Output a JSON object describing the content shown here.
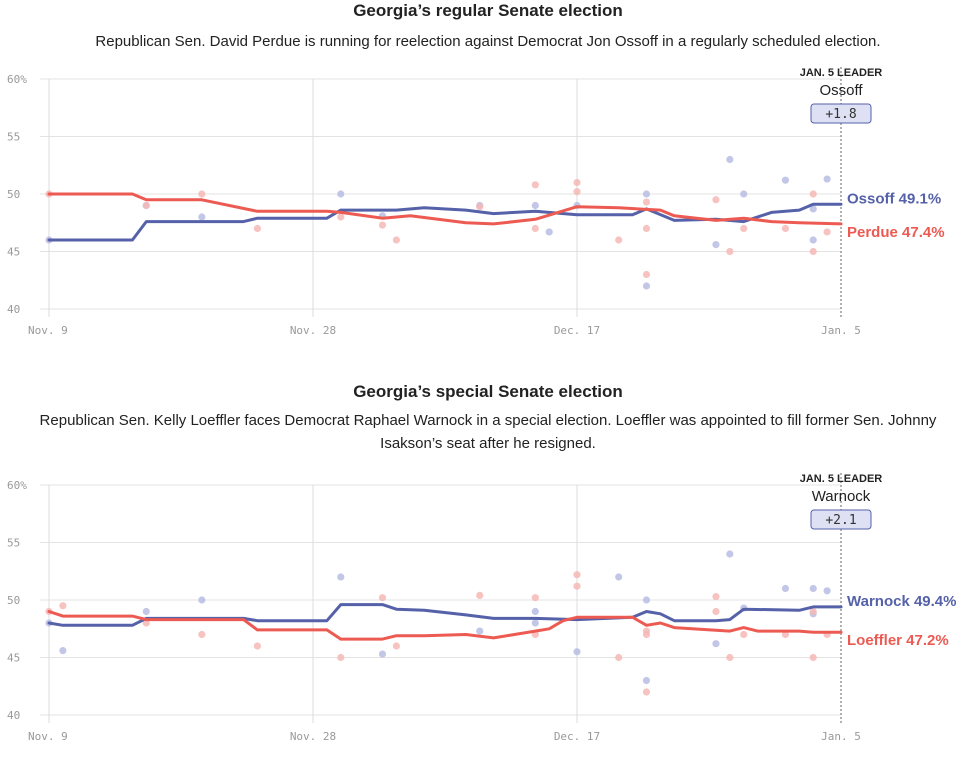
{
  "chart_data": [
    {
      "type": "line",
      "title": "Georgia’s regular Senate election",
      "subtitle": "Republican Sen. David Perdue is running for reelection against Democrat Jon Ossoff in a regularly scheduled election.",
      "x_tick_labels": [
        "Nov. 9",
        "Nov. 28",
        "Dec. 17",
        "Jan. 5"
      ],
      "x_tick_days": [
        0,
        19,
        38,
        57
      ],
      "y_ticks": [
        40,
        45,
        50,
        55,
        60
      ],
      "y_tick_labels": [
        "40",
        "45",
        "50",
        "55",
        "60%"
      ],
      "ylim": [
        40,
        60
      ],
      "xlim_days": [
        0,
        57
      ],
      "grid": true,
      "leader": {
        "caption": "JAN. 5 LEADER",
        "name": "Ossoff",
        "margin": "+1.8"
      },
      "series": [
        {
          "name": "Ossoff",
          "color": "#5561a8",
          "dot_color": "#b8bde3",
          "end_label": "Ossoff 49.1%",
          "x": [
            0,
            6,
            7,
            14,
            15,
            20,
            21,
            25,
            27,
            30,
            32,
            35,
            38,
            42,
            43,
            45,
            48,
            50,
            52,
            54,
            55,
            57
          ],
          "y": [
            46.0,
            46.0,
            47.6,
            47.6,
            47.9,
            47.9,
            48.6,
            48.6,
            48.8,
            48.6,
            48.3,
            48.5,
            48.2,
            48.2,
            48.7,
            47.7,
            47.8,
            47.6,
            48.4,
            48.6,
            49.1,
            49.1
          ],
          "polls": {
            "x": [
              0,
              7,
              11,
              21,
              24,
              31,
              35,
              36,
              38,
              43,
              43,
              48,
              49,
              50,
              53,
              55,
              55,
              56
            ],
            "y": [
              46.0,
              49.0,
              48.0,
              50.0,
              48.1,
              49.0,
              49.0,
              46.7,
              49.0,
              50.0,
              42.0,
              45.6,
              53.0,
              50.0,
              51.2,
              48.7,
              46.0,
              51.3
            ]
          }
        },
        {
          "name": "Perdue",
          "color": "#ec5a52",
          "dot_color": "#f5b9b6",
          "end_label": "Perdue 47.4%",
          "x": [
            0,
            6,
            7,
            11,
            15,
            20,
            21,
            24,
            26,
            30,
            32,
            35,
            38,
            41,
            44,
            45,
            48,
            50,
            52,
            54,
            57
          ],
          "y": [
            50.0,
            50.0,
            49.5,
            49.5,
            48.5,
            48.5,
            48.4,
            47.9,
            48.1,
            47.5,
            47.4,
            47.8,
            48.9,
            48.8,
            48.6,
            48.1,
            47.7,
            47.9,
            47.6,
            47.5,
            47.4
          ],
          "polls": {
            "x": [
              0,
              7,
              11,
              15,
              21,
              24,
              25,
              31,
              35,
              35,
              38,
              38,
              41,
              43,
              43,
              43,
              48,
              49,
              50,
              53,
              55,
              55,
              56
            ],
            "y": [
              50.0,
              49.0,
              50.0,
              47.0,
              48.0,
              47.3,
              46.0,
              48.9,
              50.8,
              47.0,
              51.0,
              50.2,
              46.0,
              49.3,
              47.0,
              43.0,
              49.5,
              45.0,
              47.0,
              47.0,
              50.0,
              45.0,
              46.7
            ]
          }
        }
      ]
    },
    {
      "type": "line",
      "title": "Georgia’s special Senate election",
      "subtitle": "Republican Sen. Kelly Loeffler faces Democrat Raphael Warnock in a special election. Loeffler was appointed to fill former Sen. Johnny Isakson’s seat after he resigned.",
      "x_tick_labels": [
        "Nov. 9",
        "Nov. 28",
        "Dec. 17",
        "Jan. 5"
      ],
      "x_tick_days": [
        0,
        19,
        38,
        57
      ],
      "y_ticks": [
        40,
        45,
        50,
        55,
        60
      ],
      "y_tick_labels": [
        "40",
        "45",
        "50",
        "55",
        "60%"
      ],
      "ylim": [
        40,
        60
      ],
      "xlim_days": [
        0,
        57
      ],
      "grid": true,
      "leader": {
        "caption": "JAN. 5 LEADER",
        "name": "Warnock",
        "margin": "+2.1"
      },
      "series": [
        {
          "name": "Warnock",
          "color": "#5561a8",
          "dot_color": "#b8bde3",
          "end_label": "Warnock 49.4%",
          "x": [
            0,
            1,
            6,
            7,
            14,
            15,
            20,
            21,
            24,
            25,
            27,
            30,
            32,
            35,
            38,
            42,
            43,
            44,
            45,
            48,
            49,
            50,
            54,
            55,
            57
          ],
          "y": [
            48.0,
            47.8,
            47.8,
            48.4,
            48.4,
            48.2,
            48.2,
            49.6,
            49.6,
            49.2,
            49.1,
            48.7,
            48.4,
            48.4,
            48.3,
            48.5,
            49.0,
            48.8,
            48.2,
            48.2,
            48.3,
            49.2,
            49.1,
            49.4,
            49.4
          ],
          "polls": {
            "x": [
              0,
              1,
              7,
              11,
              21,
              24,
              31,
              35,
              35,
              38,
              41,
              43,
              43,
              48,
              49,
              50,
              53,
              55,
              55,
              56
            ],
            "y": [
              48.0,
              45.6,
              49.0,
              50.0,
              52.0,
              45.3,
              47.3,
              49.0,
              48.0,
              45.5,
              52.0,
              50.0,
              43.0,
              46.2,
              54.0,
              49.3,
              51.0,
              51.0,
              48.8,
              50.8
            ]
          }
        },
        {
          "name": "Loeffler",
          "color": "#ec5a52",
          "dot_color": "#f5b9b6",
          "end_label": "Loeffler 47.2%",
          "x": [
            0,
            1,
            6,
            7,
            14,
            15,
            20,
            21,
            24,
            25,
            27,
            30,
            32,
            35,
            36,
            37,
            38,
            42,
            43,
            44,
            45,
            49,
            50,
            51,
            54,
            55,
            57
          ],
          "y": [
            49.0,
            48.6,
            48.6,
            48.3,
            48.3,
            47.4,
            47.4,
            46.6,
            46.6,
            46.9,
            46.9,
            47.0,
            46.7,
            47.3,
            47.5,
            48.2,
            48.5,
            48.5,
            47.8,
            48.0,
            47.6,
            47.3,
            47.6,
            47.3,
            47.3,
            47.2,
            47.2
          ],
          "polls": {
            "x": [
              0,
              1,
              7,
              11,
              15,
              21,
              24,
              25,
              31,
              35,
              35,
              38,
              38,
              41,
              43,
              43,
              43,
              48,
              48,
              49,
              50,
              53,
              55,
              55,
              56
            ],
            "y": [
              49.0,
              49.5,
              48.0,
              47.0,
              46.0,
              45.0,
              50.2,
              46.0,
              50.4,
              50.2,
              47.0,
              52.2,
              51.2,
              45.0,
              47.0,
              42.0,
              47.3,
              50.3,
              49.0,
              45.0,
              47.0,
              47.0,
              49.0,
              45.0,
              47.0
            ]
          }
        }
      ]
    }
  ]
}
